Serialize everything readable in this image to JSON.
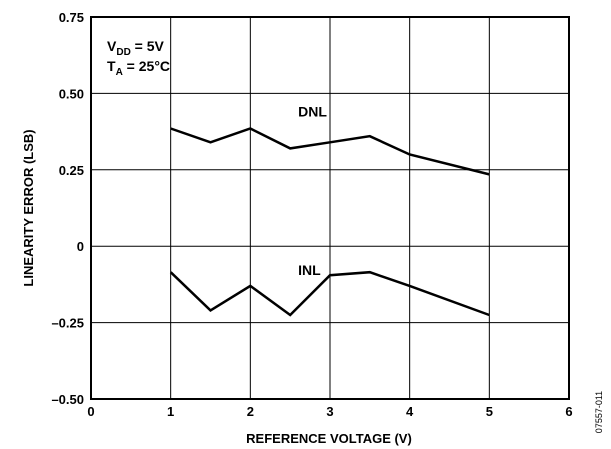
{
  "chart_data": {
    "type": "line",
    "title": "",
    "xlabel": "REFERENCE VOLTAGE (V)",
    "ylabel": "LINEARITY ERROR (LSB)",
    "xlim": [
      0,
      6
    ],
    "ylim": [
      -0.5,
      0.75
    ],
    "x_ticks": [
      0,
      1,
      2,
      3,
      4,
      5,
      6
    ],
    "x_tick_labels": [
      "0",
      "1",
      "2",
      "3",
      "4",
      "5",
      "6"
    ],
    "y_ticks": [
      -0.5,
      -0.25,
      0,
      0.25,
      0.5,
      0.75
    ],
    "y_tick_labels": [
      "–0.50",
      "–0.25",
      "0",
      "0.25",
      "0.50",
      "0.75"
    ],
    "grid": true,
    "series": [
      {
        "name": "DNL",
        "x": [
          1,
          1.5,
          2,
          2.5,
          3,
          3.5,
          4,
          5
        ],
        "y": [
          0.385,
          0.34,
          0.385,
          0.32,
          0.34,
          0.36,
          0.3,
          0.235
        ]
      },
      {
        "name": "INL",
        "x": [
          1,
          1.5,
          2,
          2.5,
          3,
          3.5,
          4,
          5
        ],
        "y": [
          -0.085,
          -0.21,
          -0.13,
          -0.225,
          -0.095,
          -0.085,
          -0.13,
          -0.225
        ]
      }
    ],
    "annotations": {
      "vdd": {
        "main": "V",
        "sub": "DD",
        "rest": " = 5V"
      },
      "ta": {
        "main": "T",
        "sub": "A",
        "rest": " = 25°C"
      }
    },
    "figure_id": "07557-011"
  }
}
